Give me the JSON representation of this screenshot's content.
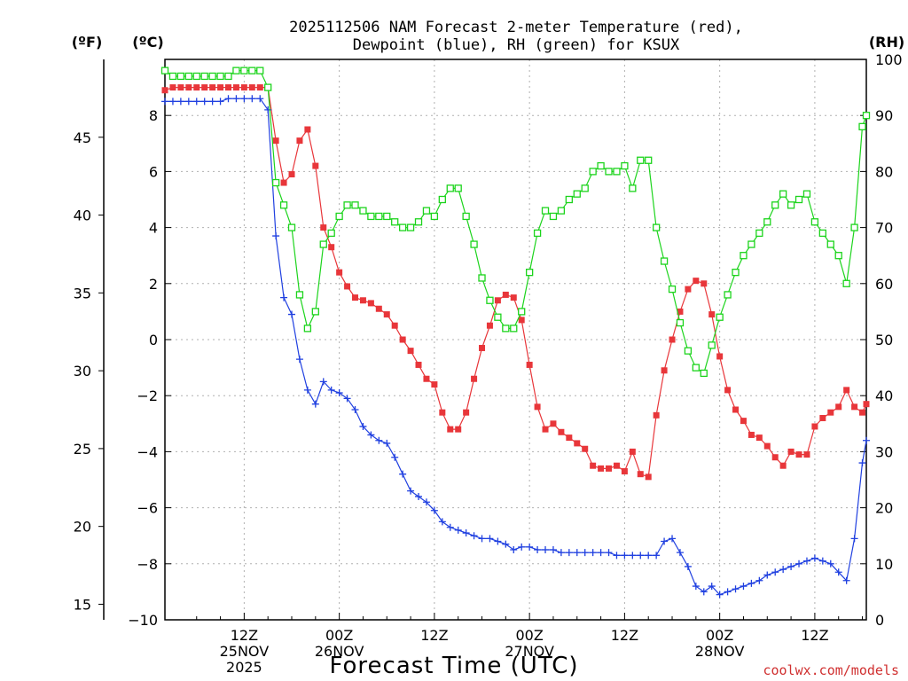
{
  "chart_data": {
    "type": "line",
    "title_line1": "2025112506 NAM Forecast 2-meter Temperature (red),",
    "title_line2": "Dewpoint (blue), RH (green) for KSUX",
    "unit_f": "(ºF)",
    "unit_c": "(ºC)",
    "unit_rh": "(RH)",
    "xlabel": "Forecast Time (UTC)",
    "credit": "coolwx.com/models",
    "x_range_hours": [
      -4,
      84.5
    ],
    "c_range": [
      -10,
      10
    ],
    "rh_range": [
      0,
      100
    ],
    "f_range": [
      14,
      50
    ],
    "c_ticks": [
      "8",
      "6",
      "4",
      "2",
      "0",
      "−2",
      "−4",
      "−6",
      "−8",
      "−10"
    ],
    "f_ticks": [
      "45",
      "40",
      "35",
      "30",
      "25",
      "20",
      "15"
    ],
    "rh_ticks": [
      "100",
      "90",
      "80",
      "70",
      "60",
      "50",
      "40",
      "30",
      "20",
      "10",
      "0"
    ],
    "x_tick_labels": [
      {
        "h": 6,
        "lines": [
          "12Z",
          "25NOV",
          "2025"
        ]
      },
      {
        "h": 18,
        "lines": [
          "00Z",
          "26NOV"
        ]
      },
      {
        "h": 30,
        "lines": [
          "12Z"
        ]
      },
      {
        "h": 42,
        "lines": [
          "00Z",
          "27NOV"
        ]
      },
      {
        "h": 54,
        "lines": [
          "12Z"
        ]
      },
      {
        "h": 66,
        "lines": [
          "00Z",
          "28NOV"
        ]
      },
      {
        "h": 78,
        "lines": [
          "12Z"
        ]
      }
    ],
    "series": [
      {
        "name": "Temperature",
        "color": "#e8363a",
        "marker": "filled-square",
        "points": [
          [
            -4,
            8.9
          ],
          [
            -3,
            9.0
          ],
          [
            -2,
            9.0
          ],
          [
            -1,
            9.0
          ],
          [
            0,
            9.0
          ],
          [
            1,
            9.0
          ],
          [
            2,
            9.0
          ],
          [
            3,
            9.0
          ],
          [
            4,
            9.0
          ],
          [
            5,
            9.0
          ],
          [
            6,
            9.0
          ],
          [
            7,
            9.0
          ],
          [
            8,
            9.0
          ],
          [
            9,
            9.0
          ],
          [
            10,
            7.1
          ],
          [
            11,
            5.6
          ],
          [
            12,
            5.9
          ],
          [
            13,
            7.1
          ],
          [
            14,
            7.5
          ],
          [
            15,
            6.2
          ],
          [
            16,
            4.0
          ],
          [
            17,
            3.3
          ],
          [
            18,
            2.4
          ],
          [
            19,
            1.9
          ],
          [
            20,
            1.5
          ],
          [
            21,
            1.4
          ],
          [
            22,
            1.3
          ],
          [
            23,
            1.1
          ],
          [
            24,
            0.9
          ],
          [
            25,
            0.5
          ],
          [
            26,
            0.0
          ],
          [
            27,
            -0.4
          ],
          [
            28,
            -0.9
          ],
          [
            29,
            -1.4
          ],
          [
            30,
            -1.6
          ],
          [
            31,
            -2.6
          ],
          [
            32,
            -3.2
          ],
          [
            33,
            -3.2
          ],
          [
            34,
            -2.6
          ],
          [
            35,
            -1.4
          ],
          [
            36,
            -0.3
          ],
          [
            37,
            0.5
          ],
          [
            38,
            1.4
          ],
          [
            39,
            1.6
          ],
          [
            40,
            1.5
          ],
          [
            41,
            0.7
          ],
          [
            42,
            -0.9
          ],
          [
            43,
            -2.4
          ],
          [
            44,
            -3.2
          ],
          [
            45,
            -3.0
          ],
          [
            46,
            -3.3
          ],
          [
            47,
            -3.5
          ],
          [
            48,
            -3.7
          ],
          [
            49,
            -3.9
          ],
          [
            50,
            -4.5
          ],
          [
            51,
            -4.6
          ],
          [
            52,
            -4.6
          ],
          [
            53,
            -4.5
          ],
          [
            54,
            -4.7
          ],
          [
            55,
            -4.0
          ],
          [
            56,
            -4.8
          ],
          [
            57,
            -4.9
          ],
          [
            58,
            -2.7
          ],
          [
            59,
            -1.1
          ],
          [
            60,
            0.0
          ],
          [
            61,
            1.0
          ],
          [
            62,
            1.8
          ],
          [
            63,
            2.1
          ],
          [
            64,
            2.0
          ],
          [
            65,
            0.9
          ],
          [
            66,
            -0.6
          ],
          [
            67,
            -1.8
          ],
          [
            68,
            -2.5
          ],
          [
            69,
            -2.9
          ],
          [
            70,
            -3.4
          ],
          [
            71,
            -3.5
          ],
          [
            72,
            -3.8
          ],
          [
            73,
            -4.2
          ],
          [
            74,
            -4.5
          ],
          [
            75,
            -4.0
          ],
          [
            76,
            -4.1
          ],
          [
            77,
            -4.1
          ],
          [
            78,
            -3.1
          ],
          [
            79,
            -2.8
          ],
          [
            80,
            -2.6
          ],
          [
            81,
            -2.4
          ],
          [
            82,
            -1.8
          ],
          [
            83,
            -2.4
          ],
          [
            84,
            -2.6
          ],
          [
            84.5,
            -2.3
          ]
        ]
      },
      {
        "name": "Dewpoint",
        "color": "#2040e0",
        "marker": "plus",
        "points": [
          [
            -4,
            8.5
          ],
          [
            -3,
            8.5
          ],
          [
            -2,
            8.5
          ],
          [
            -1,
            8.5
          ],
          [
            0,
            8.5
          ],
          [
            1,
            8.5
          ],
          [
            2,
            8.5
          ],
          [
            3,
            8.5
          ],
          [
            4,
            8.6
          ],
          [
            5,
            8.6
          ],
          [
            6,
            8.6
          ],
          [
            7,
            8.6
          ],
          [
            8,
            8.6
          ],
          [
            9,
            8.2
          ],
          [
            10,
            3.7
          ],
          [
            11,
            1.5
          ],
          [
            12,
            0.9
          ],
          [
            13,
            -0.7
          ],
          [
            14,
            -1.8
          ],
          [
            15,
            -2.3
          ],
          [
            16,
            -1.5
          ],
          [
            17,
            -1.8
          ],
          [
            18,
            -1.9
          ],
          [
            19,
            -2.1
          ],
          [
            20,
            -2.5
          ],
          [
            21,
            -3.1
          ],
          [
            22,
            -3.4
          ],
          [
            23,
            -3.6
          ],
          [
            24,
            -3.7
          ],
          [
            25,
            -4.2
          ],
          [
            26,
            -4.8
          ],
          [
            27,
            -5.4
          ],
          [
            28,
            -5.6
          ],
          [
            29,
            -5.8
          ],
          [
            30,
            -6.1
          ],
          [
            31,
            -6.5
          ],
          [
            32,
            -6.7
          ],
          [
            33,
            -6.8
          ],
          [
            34,
            -6.9
          ],
          [
            35,
            -7.0
          ],
          [
            36,
            -7.1
          ],
          [
            37,
            -7.1
          ],
          [
            38,
            -7.2
          ],
          [
            39,
            -7.3
          ],
          [
            40,
            -7.5
          ],
          [
            41,
            -7.4
          ],
          [
            42,
            -7.4
          ],
          [
            43,
            -7.5
          ],
          [
            44,
            -7.5
          ],
          [
            45,
            -7.5
          ],
          [
            46,
            -7.6
          ],
          [
            47,
            -7.6
          ],
          [
            48,
            -7.6
          ],
          [
            49,
            -7.6
          ],
          [
            50,
            -7.6
          ],
          [
            51,
            -7.6
          ],
          [
            52,
            -7.6
          ],
          [
            53,
            -7.7
          ],
          [
            54,
            -7.7
          ],
          [
            55,
            -7.7
          ],
          [
            56,
            -7.7
          ],
          [
            57,
            -7.7
          ],
          [
            58,
            -7.7
          ],
          [
            59,
            -7.2
          ],
          [
            60,
            -7.1
          ],
          [
            61,
            -7.6
          ],
          [
            62,
            -8.1
          ],
          [
            63,
            -8.8
          ],
          [
            64,
            -9.0
          ],
          [
            65,
            -8.8
          ],
          [
            66,
            -9.1
          ],
          [
            67,
            -9.0
          ],
          [
            68,
            -8.9
          ],
          [
            69,
            -8.8
          ],
          [
            70,
            -8.7
          ],
          [
            71,
            -8.6
          ],
          [
            72,
            -8.4
          ],
          [
            73,
            -8.3
          ],
          [
            74,
            -8.2
          ],
          [
            75,
            -8.1
          ],
          [
            76,
            -8.0
          ],
          [
            77,
            -7.9
          ],
          [
            78,
            -7.8
          ],
          [
            79,
            -7.9
          ],
          [
            80,
            -8.0
          ],
          [
            81,
            -8.3
          ],
          [
            82,
            -8.6
          ],
          [
            83,
            -7.1
          ],
          [
            84,
            -4.4
          ],
          [
            84.5,
            -3.6
          ]
        ]
      },
      {
        "name": "RH",
        "color": "#1cd41c",
        "marker": "open-square",
        "points": [
          [
            -4,
            98
          ],
          [
            -3,
            97
          ],
          [
            -2,
            97
          ],
          [
            -1,
            97
          ],
          [
            0,
            97
          ],
          [
            1,
            97
          ],
          [
            2,
            97
          ],
          [
            3,
            97
          ],
          [
            4,
            97
          ],
          [
            5,
            98
          ],
          [
            6,
            98
          ],
          [
            7,
            98
          ],
          [
            8,
            98
          ],
          [
            9,
            95
          ],
          [
            10,
            78
          ],
          [
            11,
            74
          ],
          [
            12,
            70
          ],
          [
            13,
            58
          ],
          [
            14,
            52
          ],
          [
            15,
            55
          ],
          [
            16,
            67
          ],
          [
            17,
            69
          ],
          [
            18,
            72
          ],
          [
            19,
            74
          ],
          [
            20,
            74
          ],
          [
            21,
            73
          ],
          [
            22,
            72
          ],
          [
            23,
            72
          ],
          [
            24,
            72
          ],
          [
            25,
            71
          ],
          [
            26,
            70
          ],
          [
            27,
            70
          ],
          [
            28,
            71
          ],
          [
            29,
            73
          ],
          [
            30,
            72
          ],
          [
            31,
            75
          ],
          [
            32,
            77
          ],
          [
            33,
            77
          ],
          [
            34,
            72
          ],
          [
            35,
            67
          ],
          [
            36,
            61
          ],
          [
            37,
            57
          ],
          [
            38,
            54
          ],
          [
            39,
            52
          ],
          [
            40,
            52
          ],
          [
            41,
            55
          ],
          [
            42,
            62
          ],
          [
            43,
            69
          ],
          [
            44,
            73
          ],
          [
            45,
            72
          ],
          [
            46,
            73
          ],
          [
            47,
            75
          ],
          [
            48,
            76
          ],
          [
            49,
            77
          ],
          [
            50,
            80
          ],
          [
            51,
            81
          ],
          [
            52,
            80
          ],
          [
            53,
            80
          ],
          [
            54,
            81
          ],
          [
            55,
            77
          ],
          [
            56,
            82
          ],
          [
            57,
            82
          ],
          [
            58,
            70
          ],
          [
            59,
            64
          ],
          [
            60,
            59
          ],
          [
            61,
            53
          ],
          [
            62,
            48
          ],
          [
            63,
            45
          ],
          [
            64,
            44
          ],
          [
            65,
            49
          ],
          [
            66,
            54
          ],
          [
            67,
            58
          ],
          [
            68,
            62
          ],
          [
            69,
            65
          ],
          [
            70,
            67
          ],
          [
            71,
            69
          ],
          [
            72,
            71
          ],
          [
            73,
            74
          ],
          [
            74,
            76
          ],
          [
            75,
            74
          ],
          [
            76,
            75
          ],
          [
            77,
            76
          ],
          [
            78,
            71
          ],
          [
            79,
            69
          ],
          [
            80,
            67
          ],
          [
            81,
            65
          ],
          [
            82,
            60
          ],
          [
            83,
            70
          ],
          [
            84,
            88
          ],
          [
            84.5,
            90
          ]
        ]
      }
    ]
  }
}
